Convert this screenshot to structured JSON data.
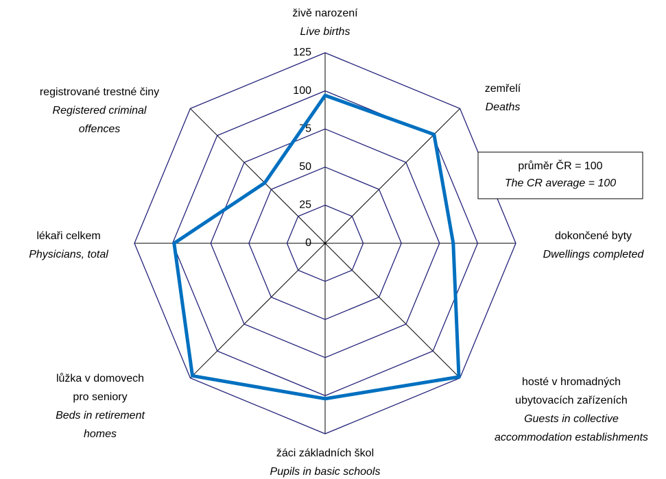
{
  "chart_data": {
    "type": "radar",
    "labels": [
      {
        "cs": [
          "živě narození"
        ],
        "en": [
          "Live births"
        ]
      },
      {
        "cs": [
          "zemřelí"
        ],
        "en": [
          "Deaths"
        ]
      },
      {
        "cs": [
          "dokončené byty"
        ],
        "en": [
          "Dwellings completed"
        ]
      },
      {
        "cs": [
          "hosté v hromadných",
          "ubytovacích zařízeních"
        ],
        "en": [
          "Guests in collective",
          "accommodation establishments"
        ]
      },
      {
        "cs": [
          "žáci základních škol"
        ],
        "en": [
          "Pupils in basic schools"
        ]
      },
      {
        "cs": [
          "lůžka v domovech",
          "pro seniory"
        ],
        "en": [
          "Beds in retirement",
          "homes"
        ]
      },
      {
        "cs": [
          "lékaři celkem"
        ],
        "en": [
          "Physicians, total"
        ]
      },
      {
        "cs": [
          "registrované trestné činy"
        ],
        "en": [
          "Registered criminal",
          "offences"
        ]
      }
    ],
    "values": [
      97,
      101,
      84,
      124,
      102,
      123,
      99,
      56
    ],
    "color": "#0070c0",
    "grid_color": "#23237a",
    "rlim": [
      0,
      125
    ],
    "rticks": [
      0,
      25,
      50,
      75,
      100,
      125
    ],
    "legend": {
      "cs": "průměr  ČR = 100",
      "en": "The CR average = 100"
    }
  }
}
